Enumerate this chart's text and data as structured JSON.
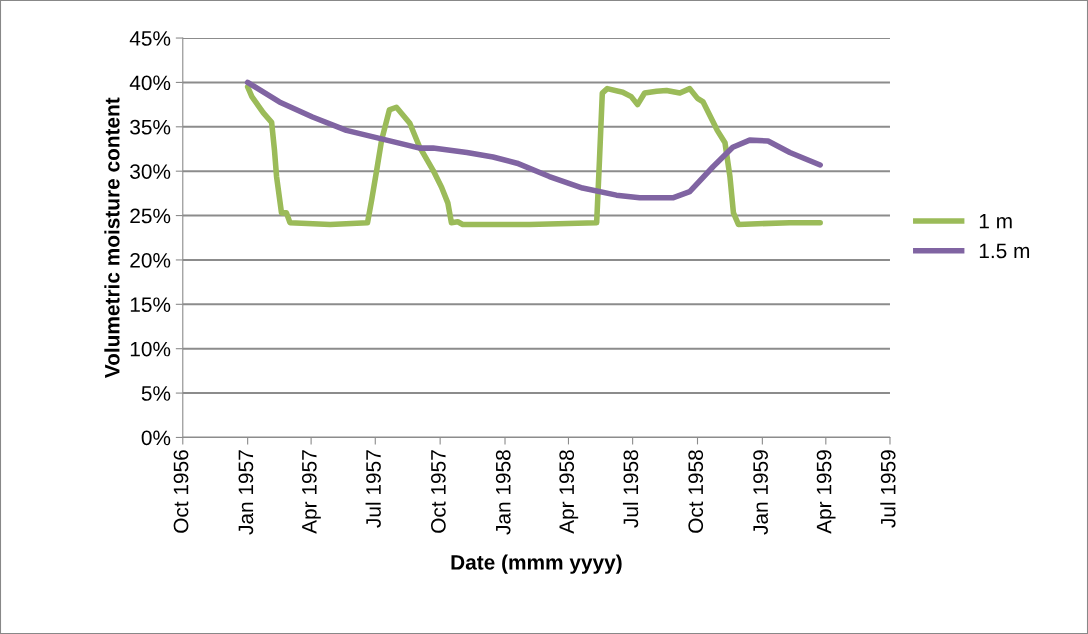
{
  "chart_data": {
    "type": "line",
    "xlabel": "Date (mmm yyyy)",
    "ylabel": "Volumetric moisture content",
    "xlim": [
      "1956-10-01",
      "1959-07-01"
    ],
    "xticks": [
      {
        "value": "1956-10-01",
        "label": "Oct 1956"
      },
      {
        "value": "1957-01-01",
        "label": "Jan 1957"
      },
      {
        "value": "1957-04-01",
        "label": "Apr 1957"
      },
      {
        "value": "1957-07-01",
        "label": "Jul 1957"
      },
      {
        "value": "1957-10-01",
        "label": "Oct 1957"
      },
      {
        "value": "1958-01-01",
        "label": "Jan 1958"
      },
      {
        "value": "1958-04-01",
        "label": "Apr 1958"
      },
      {
        "value": "1958-07-01",
        "label": "Jul 1958"
      },
      {
        "value": "1958-10-01",
        "label": "Oct 1958"
      },
      {
        "value": "1959-01-01",
        "label": "Jan 1959"
      },
      {
        "value": "1959-04-01",
        "label": "Apr 1959"
      },
      {
        "value": "1959-07-01",
        "label": "Jul 1959"
      }
    ],
    "ylim": [
      0,
      45
    ],
    "yticks": [
      {
        "value": 0,
        "label": "0%"
      },
      {
        "value": 5,
        "label": "5%"
      },
      {
        "value": 10,
        "label": "10%"
      },
      {
        "value": 15,
        "label": "15%"
      },
      {
        "value": 20,
        "label": "20%"
      },
      {
        "value": 25,
        "label": "25%"
      },
      {
        "value": 30,
        "label": "30%"
      },
      {
        "value": 35,
        "label": "35%"
      },
      {
        "value": 40,
        "label": "40%"
      },
      {
        "value": 45,
        "label": "45%"
      }
    ],
    "grid": "y",
    "legend": "right",
    "marker": "none",
    "line_style": "solid",
    "series": [
      {
        "name": "1 m",
        "color": "#9bbb59",
        "x": [
          "1957-01-01",
          "1957-01-07",
          "1957-01-23",
          "1957-02-04",
          "1957-02-08",
          "1957-02-11",
          "1957-02-18",
          "1957-02-25",
          "1957-03-02",
          "1957-04-28",
          "1957-06-20",
          "1957-06-26",
          "1957-07-03",
          "1957-07-10",
          "1957-07-21",
          "1957-07-31",
          "1957-08-19",
          "1957-09-02",
          "1957-09-21",
          "1957-10-03",
          "1957-10-12",
          "1957-10-17",
          "1957-10-26",
          "1957-11-02",
          "1958-02-05",
          "1958-05-11",
          "1958-05-15",
          "1958-05-19",
          "1958-05-26",
          "1958-06-17",
          "1958-06-29",
          "1958-07-08",
          "1958-07-18",
          "1958-08-04",
          "1958-08-18",
          "1958-09-06",
          "1958-09-20",
          "1958-10-01",
          "1958-10-09",
          "1958-10-29",
          "1958-11-09",
          "1958-11-16",
          "1958-11-21",
          "1958-11-28",
          "1959-02-09",
          "1959-03-24"
        ],
        "values": [
          39.5,
          38.4,
          36.6,
          35.5,
          32.4,
          29.4,
          25.3,
          25.3,
          24.2,
          24.0,
          24.2,
          26.8,
          30.1,
          33.5,
          36.9,
          37.2,
          35.4,
          32.7,
          30.1,
          28.2,
          26.4,
          24.2,
          24.3,
          24.0,
          24.0,
          24.2,
          31.3,
          38.8,
          39.3,
          38.9,
          38.4,
          37.5,
          38.8,
          39.0,
          39.1,
          38.8,
          39.3,
          38.2,
          37.8,
          34.6,
          33.2,
          29.4,
          25.3,
          24.0,
          24.2,
          24.2
        ]
      },
      {
        "name": "1.5 m",
        "color": "#8064a2",
        "x": [
          "1957-01-01",
          "1957-02-15",
          "1957-04-03",
          "1957-05-21",
          "1957-07-07",
          "1957-09-02",
          "1957-09-21",
          "1957-11-08",
          "1957-12-15",
          "1958-01-18",
          "1958-03-05",
          "1958-04-21",
          "1958-06-08",
          "1958-07-11",
          "1958-08-27",
          "1958-09-20",
          "1958-10-23",
          "1958-11-20",
          "1958-12-14",
          "1959-01-09",
          "1959-02-09",
          "1959-03-24"
        ],
        "values": [
          40.0,
          37.8,
          36.1,
          34.6,
          33.7,
          32.6,
          32.6,
          32.1,
          31.6,
          30.9,
          29.4,
          28.1,
          27.3,
          27.0,
          27.0,
          27.7,
          30.5,
          32.7,
          33.5,
          33.4,
          32.1,
          30.7
        ]
      }
    ]
  }
}
